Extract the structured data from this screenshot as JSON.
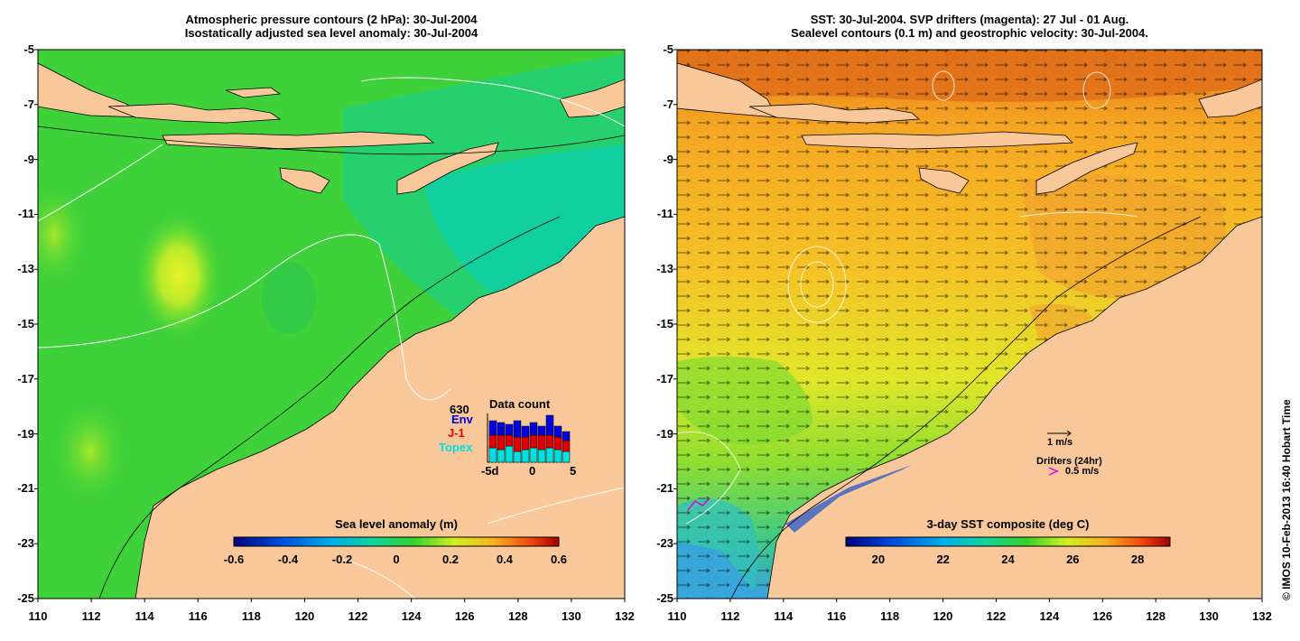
{
  "left_panel": {
    "title_line1": "Atmospheric pressure contours (2 hPa): 30-Jul-2004",
    "title_line2": "Isostatically adjusted sea level anomaly: 30-Jul-2004",
    "colorbar_title": "Sea level anomaly (m)",
    "colorbar_ticks": [
      "-0.6",
      "-0.4",
      "-0.2",
      "0",
      "0.2",
      "0.4",
      "0.6"
    ],
    "inset": {
      "title": "Data count",
      "count": "630",
      "missions": [
        "Env",
        "J-1",
        "Topex"
      ],
      "mission_colors": [
        "#0000e0",
        "#e00000",
        "#00e0e0"
      ],
      "x_ticks": [
        "-5d",
        "0",
        "5"
      ]
    }
  },
  "right_panel": {
    "title_line1": "SST: 30-Jul-2004. SVP drifters (magenta): 27 Jul - 01 Aug.",
    "title_line2": "Sealevel contours (0.1 m) and geostrophic velocity: 30-Jul-2004.",
    "colorbar_title": "3-day SST composite (deg C)",
    "colorbar_ticks": [
      "20",
      "22",
      "24",
      "26",
      "28"
    ],
    "velocity_scale_label": "1 m/s",
    "drifters_label": "Drifters (24hr)",
    "drifter_speed_label": "0.5 m/s"
  },
  "axes": {
    "y_ticks": [
      "-5",
      "-7",
      "-9",
      "-11",
      "-13",
      "-15",
      "-17",
      "-19",
      "-21",
      "-23",
      "-25"
    ],
    "x_ticks": [
      "110",
      "112",
      "114",
      "116",
      "118",
      "120",
      "122",
      "124",
      "126",
      "128",
      "130",
      "132"
    ]
  },
  "credit": "© IMOS 10-Feb-2013 16:40 Hobart Time",
  "colors": {
    "land": "#f8c89a",
    "ocean_green": "#2fd23a",
    "ocean_teal": "#12cfa0",
    "sst_orange": "#f5a623"
  }
}
